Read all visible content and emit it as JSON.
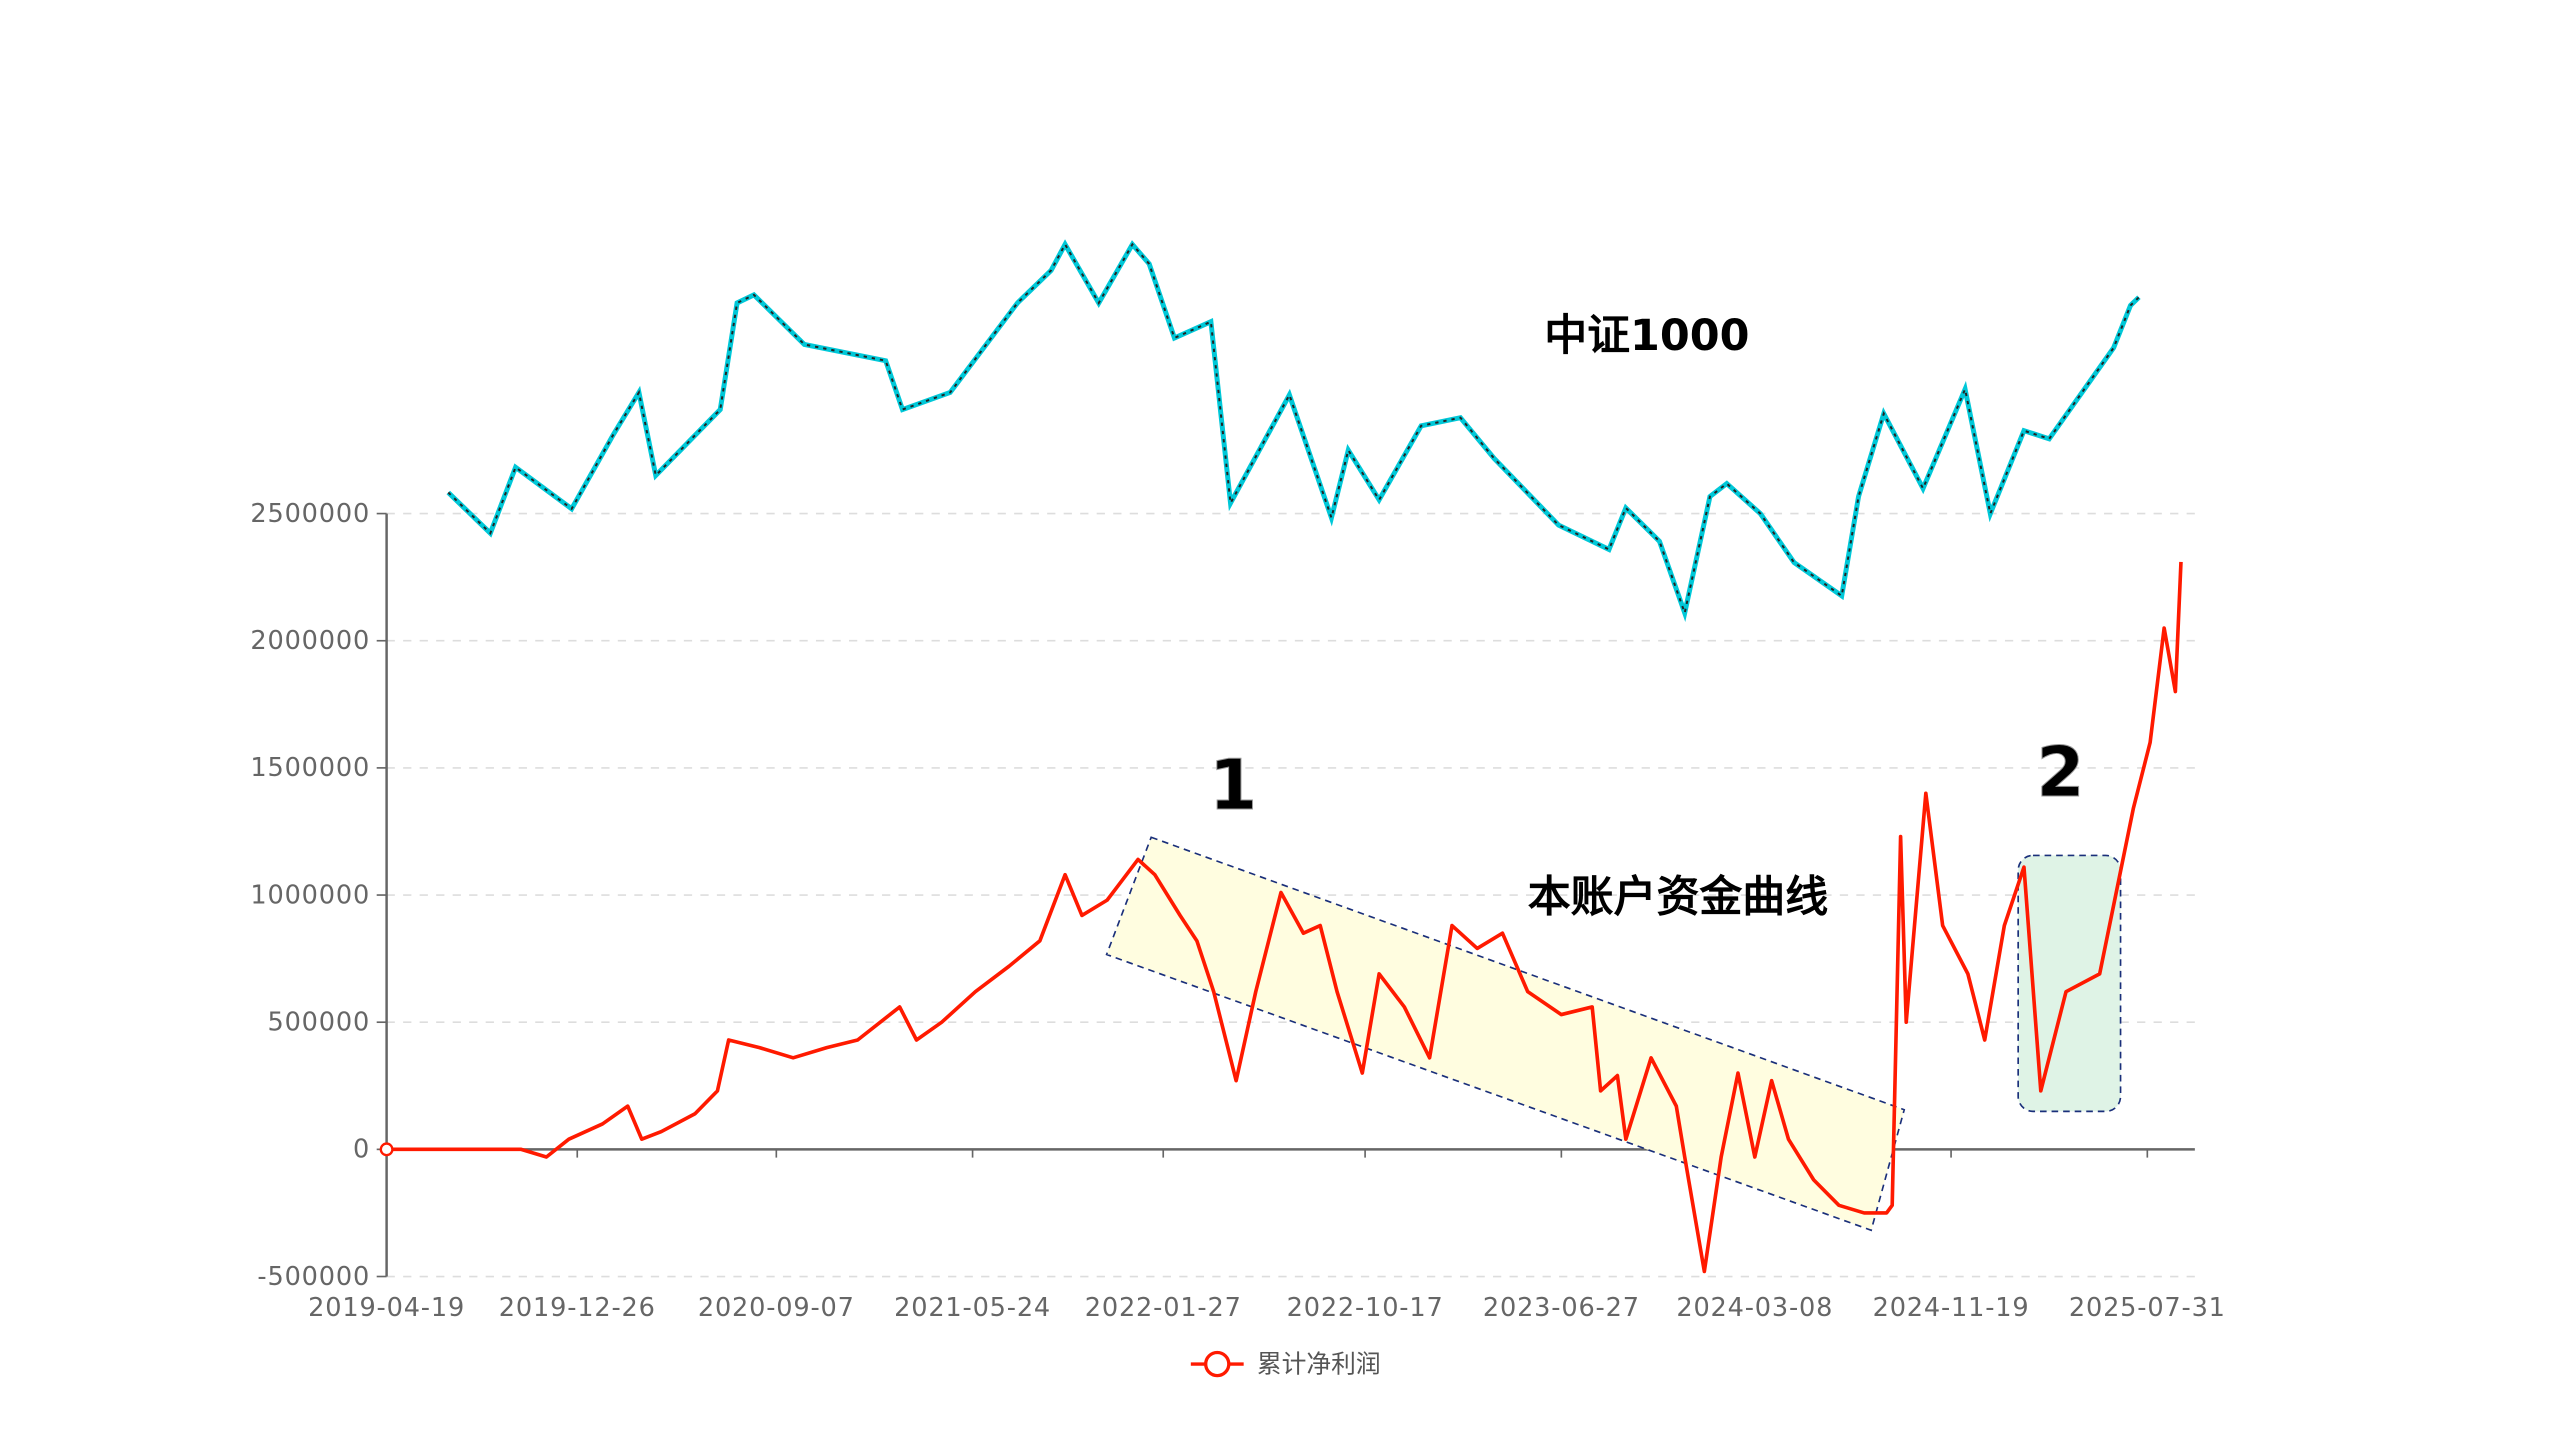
{
  "chart_data": {
    "type": "line",
    "title": "",
    "xlabel": "",
    "ylabel": "",
    "ylim": [
      -500000,
      2500000
    ],
    "grid": true,
    "legend_position": "bottom-center",
    "y_ticks": [
      "2500000",
      "2000000",
      "1500000",
      "1000000",
      "500000",
      "0",
      "-500000"
    ],
    "y_tick_values": [
      2500000,
      2000000,
      1500000,
      1000000,
      500000,
      0,
      -500000
    ],
    "x_ticks": [
      "2019-04-19",
      "2019-12-26",
      "2020-09-07",
      "2021-05-24",
      "2022-01-27",
      "2022-10-17",
      "2023-06-27",
      "2024-03-08",
      "2024-11-19",
      "2025-07-31"
    ],
    "x_tick_years": [
      2019.3,
      2019.98,
      2020.69,
      2021.39,
      2022.07,
      2022.79,
      2023.49,
      2024.18,
      2024.88,
      2025.58
    ],
    "series": [
      {
        "name": "累计净利润",
        "color": "#ff0000",
        "x_year": [
          2019.3,
          2019.78,
          2019.87,
          2019.95,
          2020.07,
          2020.16,
          2020.21,
          2020.28,
          2020.4,
          2020.48,
          2020.52,
          2020.63,
          2020.75,
          2020.87,
          2020.98,
          2021.13,
          2021.19,
          2021.28,
          2021.4,
          2021.52,
          2021.63,
          2021.72,
          2021.78,
          2021.87,
          2021.98,
          2022.04,
          2022.13,
          2022.19,
          2022.25,
          2022.33,
          2022.4,
          2022.49,
          2022.57,
          2022.63,
          2022.69,
          2022.78,
          2022.84,
          2022.93,
          2023.02,
          2023.1,
          2023.19,
          2023.28,
          2023.37,
          2023.49,
          2023.6,
          2023.63,
          2023.69,
          2023.72,
          2023.81,
          2023.9,
          2023.93,
          2024.0,
          2024.06,
          2024.12,
          2024.18,
          2024.24,
          2024.3,
          2024.39,
          2024.48,
          2024.57,
          2024.65,
          2024.67,
          2024.7,
          2024.72,
          2024.79,
          2024.85,
          2024.94,
          2025.0,
          2025.07,
          2025.14,
          2025.2,
          2025.29,
          2025.41,
          2025.53,
          2025.59,
          2025.64,
          2025.68,
          2025.7
        ],
        "values": [
          0,
          0,
          -30000,
          40000,
          100000,
          170000,
          40000,
          70000,
          140000,
          230000,
          430000,
          400000,
          360000,
          400000,
          430000,
          560000,
          430000,
          500000,
          620000,
          720000,
          820000,
          1080000,
          920000,
          980000,
          1140000,
          1080000,
          920000,
          820000,
          620000,
          270000,
          620000,
          1010000,
          850000,
          880000,
          620000,
          300000,
          690000,
          560000,
          360000,
          880000,
          790000,
          850000,
          620000,
          530000,
          560000,
          230000,
          290000,
          40000,
          360000,
          170000,
          -30000,
          -480000,
          -30000,
          300000,
          -30000,
          270000,
          40000,
          -120000,
          -220000,
          -250000,
          -250000,
          -220000,
          1230000,
          500000,
          1400000,
          880000,
          690000,
          430000,
          880000,
          1110000,
          230000,
          620000,
          690000,
          1340000,
          1600000,
          2050000,
          1800000,
          2310000
        ]
      },
      {
        "name": "中证1000",
        "type": "candlestick-approx",
        "color": "#00c8d8",
        "x_year": [
          2019.52,
          2019.67,
          2019.76,
          2019.96,
          2020.11,
          2020.2,
          2020.26,
          2020.49,
          2020.55,
          2020.61,
          2020.79,
          2021.08,
          2021.14,
          2021.31,
          2021.55,
          2021.67,
          2021.72,
          2021.84,
          2021.96,
          2022.02,
          2022.11,
          2022.24,
          2022.31,
          2022.52,
          2022.67,
          2022.73,
          2022.84,
          2022.99,
          2023.13,
          2023.25,
          2023.48,
          2023.66,
          2023.72,
          2023.84,
          2023.93,
          2024.02,
          2024.08,
          2024.2,
          2024.32,
          2024.49,
          2024.55,
          2024.64,
          2024.78,
          2024.93,
          2025.02,
          2025.14,
          2025.23,
          2025.46,
          2025.52,
          2025.55
        ],
        "values": [
          5450,
          4950,
          5760,
          5250,
          6170,
          6680,
          5660,
          6470,
          7780,
          7880,
          7270,
          7070,
          6470,
          6680,
          7780,
          8180,
          8500,
          7780,
          8500,
          8260,
          7350,
          7550,
          5320,
          6650,
          5140,
          5970,
          5360,
          6270,
          6370,
          5870,
          5050,
          4750,
          5260,
          4850,
          3970,
          5400,
          5560,
          5190,
          4590,
          4180,
          5400,
          6420,
          5500,
          6720,
          5190,
          6210,
          6110,
          7230,
          7750,
          7850
        ]
      }
    ],
    "annotations": {
      "index_label": "中证1000",
      "curve_label": "本账户资金曲线",
      "zone1_label": "1",
      "zone2_label": "2",
      "zone1_color": "#fffde0",
      "zone2_color": "#dff3e6"
    },
    "legend": {
      "label": "累计净利润"
    }
  }
}
